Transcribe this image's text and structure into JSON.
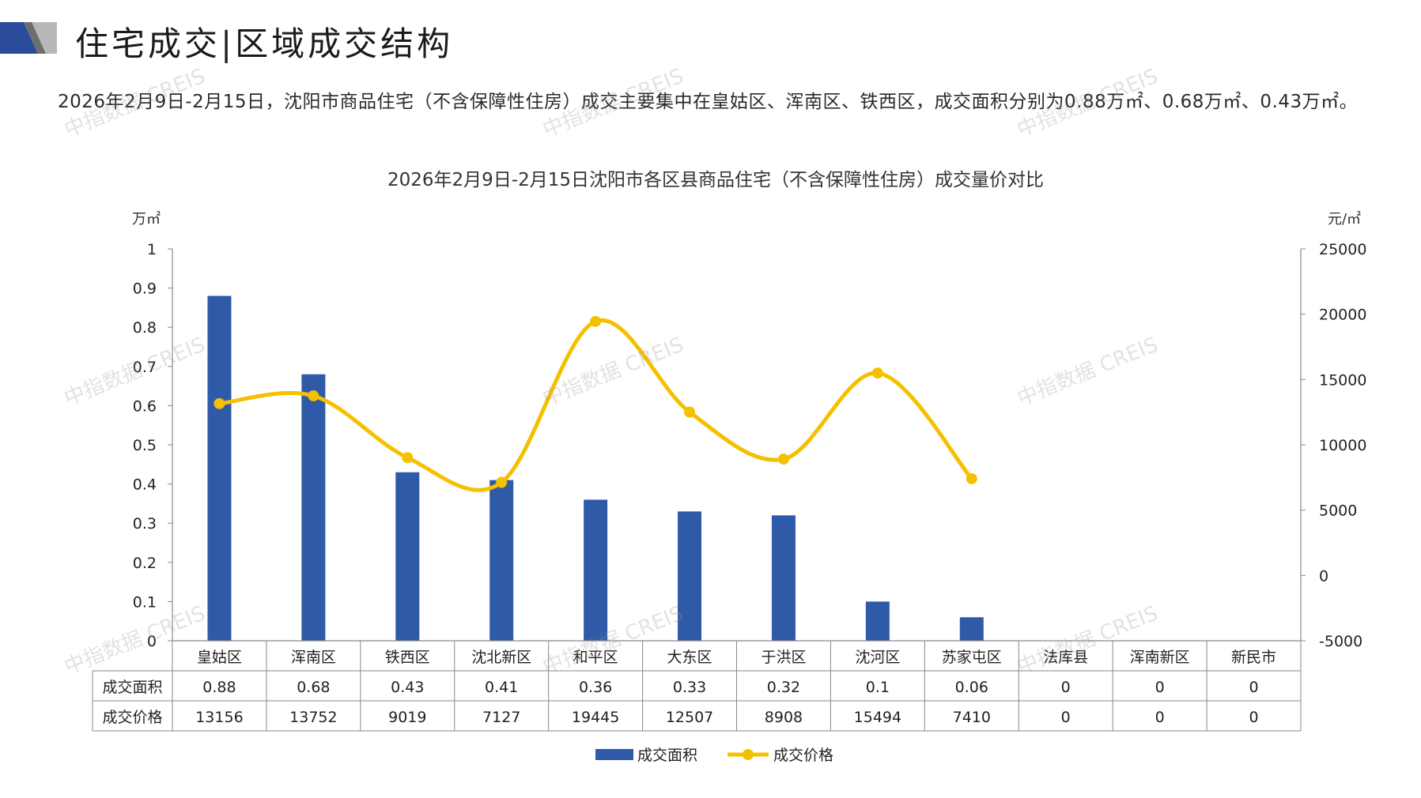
{
  "header": {
    "title": "住宅成交|区域成交结构"
  },
  "summary": {
    "text": "2026年2月9日-2月15日，沈阳市商品住宅（不含保障性住房）成交主要集中在皇姑区、浑南区、铁西区，成交面积分别为0.88万㎡、0.68万㎡、0.43万㎡。"
  },
  "watermark": "中指数据 CREIS",
  "colors": {
    "bar": "#2F5AA8",
    "line": "#F5C000",
    "axis": "#888888",
    "logo_dark": "#2B4C9A",
    "logo_gray": "#B8B8B8"
  },
  "chart_data": {
    "type": "bar+line",
    "title": "2026年2月9日-2月15日沈阳市各区县商品住宅（不含保障性住房）成交量价对比",
    "ylabel_left": "万㎡",
    "ylabel_right": "元/㎡",
    "categories": [
      "皇姑区",
      "浑南区",
      "铁西区",
      "沈北新区",
      "和平区",
      "大东区",
      "于洪区",
      "沈河区",
      "苏家屯区",
      "法库县",
      "浑南新区",
      "新民市"
    ],
    "series": [
      {
        "name": "成交面积",
        "type": "bar",
        "axis": "left",
        "values": [
          0.88,
          0.68,
          0.43,
          0.41,
          0.36,
          0.33,
          0.32,
          0.1,
          0.06,
          0,
          0,
          0
        ],
        "table_values": [
          "0.88",
          "0.68",
          "0.43",
          "0.41",
          "0.36",
          "0.33",
          "0.32",
          "0.1",
          "0.06",
          "0",
          "0",
          "0"
        ]
      },
      {
        "name": "成交价格",
        "type": "line",
        "axis": "right",
        "values": [
          13156,
          13752,
          9019,
          7127,
          19445,
          12507,
          8908,
          15494,
          7410,
          0,
          0,
          0
        ],
        "table_values": [
          "13156",
          "13752",
          "9019",
          "7127",
          "19445",
          "12507",
          "8908",
          "15494",
          "7410",
          "0",
          "0",
          "0"
        ],
        "plotted_count": 9
      }
    ],
    "ylim_left": [
      0,
      1
    ],
    "yticks_left": [
      "0",
      "0.1",
      "0.2",
      "0.3",
      "0.4",
      "0.5",
      "0.6",
      "0.7",
      "0.8",
      "0.9",
      "1"
    ],
    "ylim_right": [
      -5000,
      25000
    ],
    "yticks_right": [
      "-5000",
      "0",
      "5000",
      "10000",
      "15000",
      "20000",
      "25000"
    ],
    "data_table": true,
    "legend_position": "bottom",
    "grid": false
  }
}
